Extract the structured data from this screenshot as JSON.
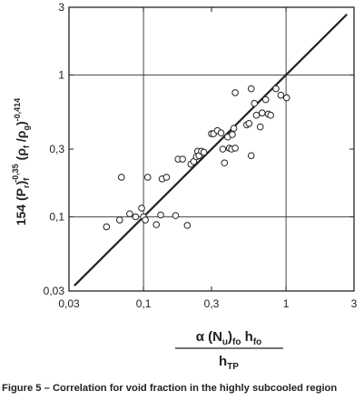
{
  "chart_data": {
    "type": "scatter",
    "scale": "log-log",
    "xlim": [
      0.03,
      3
    ],
    "ylim": [
      0.03,
      3
    ],
    "x_ticks": [
      {
        "value": 0.03,
        "label": "0,03"
      },
      {
        "value": 0.1,
        "label": "0,1"
      },
      {
        "value": 0.3,
        "label": "0,3"
      },
      {
        "value": 1,
        "label": "1"
      },
      {
        "value": 3,
        "label": "3"
      }
    ],
    "y_ticks": [
      {
        "value": 0.03,
        "label": "0,03"
      },
      {
        "value": 0.1,
        "label": "0,1"
      },
      {
        "value": 0.3,
        "label": "0,3"
      },
      {
        "value": 1,
        "label": "1"
      },
      {
        "value": 3,
        "label": "3"
      }
    ],
    "grid_values": [
      0.1,
      1
    ],
    "ylabel": {
      "prefix": "154 (P",
      "sub1": "r",
      "mid1": ")",
      "sub2": "f",
      "sup2": "-0,35",
      "mid2": " (ρ",
      "sub3": "f",
      "mid3": " /ρ",
      "sub4": "g",
      "mid4": ")",
      "sup4": "-0,414"
    },
    "xlabel": {
      "num_prefix": "α (N",
      "num_sub1": "u",
      "num_mid1": ")",
      "num_sub2": "fo",
      "num_mid2": " h",
      "num_sub3": "fo",
      "den_prefix": "h",
      "den_sub": "TP"
    },
    "fit_line": {
      "x": [
        0.033,
        2.65
      ],
      "y": [
        0.033,
        2.65
      ]
    },
    "points": [
      {
        "x": 0.055,
        "y": 0.085
      },
      {
        "x": 0.068,
        "y": 0.095
      },
      {
        "x": 0.07,
        "y": 0.19
      },
      {
        "x": 0.08,
        "y": 0.105
      },
      {
        "x": 0.088,
        "y": 0.1
      },
      {
        "x": 0.097,
        "y": 0.115
      },
      {
        "x": 0.1,
        "y": 0.1
      },
      {
        "x": 0.103,
        "y": 0.095
      },
      {
        "x": 0.107,
        "y": 0.19
      },
      {
        "x": 0.123,
        "y": 0.088
      },
      {
        "x": 0.132,
        "y": 0.103
      },
      {
        "x": 0.135,
        "y": 0.185
      },
      {
        "x": 0.145,
        "y": 0.19
      },
      {
        "x": 0.168,
        "y": 0.102
      },
      {
        "x": 0.175,
        "y": 0.255
      },
      {
        "x": 0.188,
        "y": 0.255
      },
      {
        "x": 0.203,
        "y": 0.087
      },
      {
        "x": 0.215,
        "y": 0.235
      },
      {
        "x": 0.225,
        "y": 0.245
      },
      {
        "x": 0.235,
        "y": 0.265
      },
      {
        "x": 0.24,
        "y": 0.29
      },
      {
        "x": 0.245,
        "y": 0.27
      },
      {
        "x": 0.255,
        "y": 0.29
      },
      {
        "x": 0.265,
        "y": 0.285
      },
      {
        "x": 0.3,
        "y": 0.385
      },
      {
        "x": 0.31,
        "y": 0.385
      },
      {
        "x": 0.33,
        "y": 0.405
      },
      {
        "x": 0.35,
        "y": 0.39
      },
      {
        "x": 0.36,
        "y": 0.3
      },
      {
        "x": 0.37,
        "y": 0.24
      },
      {
        "x": 0.39,
        "y": 0.365
      },
      {
        "x": 0.4,
        "y": 0.305
      },
      {
        "x": 0.415,
        "y": 0.3
      },
      {
        "x": 0.42,
        "y": 0.38
      },
      {
        "x": 0.43,
        "y": 0.42
      },
      {
        "x": 0.44,
        "y": 0.305
      },
      {
        "x": 0.44,
        "y": 0.75
      },
      {
        "x": 0.53,
        "y": 0.445
      },
      {
        "x": 0.55,
        "y": 0.455
      },
      {
        "x": 0.57,
        "y": 0.8
      },
      {
        "x": 0.57,
        "y": 0.27
      },
      {
        "x": 0.6,
        "y": 0.63
      },
      {
        "x": 0.62,
        "y": 0.52
      },
      {
        "x": 0.66,
        "y": 0.43
      },
      {
        "x": 0.68,
        "y": 0.54
      },
      {
        "x": 0.72,
        "y": 0.67
      },
      {
        "x": 0.75,
        "y": 0.53
      },
      {
        "x": 0.78,
        "y": 0.52
      },
      {
        "x": 0.85,
        "y": 0.8
      },
      {
        "x": 0.92,
        "y": 0.72
      },
      {
        "x": 1.01,
        "y": 0.69
      }
    ]
  },
  "caption": "Figure 5 – Correlation for void fraction in the highly subcooled region"
}
